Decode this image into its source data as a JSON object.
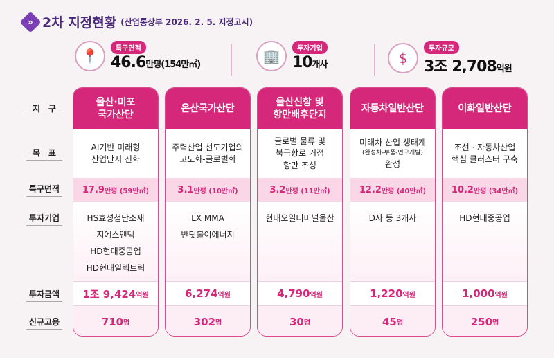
{
  "title": {
    "main": "2차 지정현황",
    "sub": "(산업통상부 2026. 2. 5. 지정고시)"
  },
  "stats": [
    {
      "icon": "map-pin-icon",
      "label": "특구면적",
      "value": "46.6",
      "unit": "만평(154만㎡)"
    },
    {
      "icon": "building-icon",
      "label": "투자기업",
      "value": "10",
      "unit": "개사"
    },
    {
      "icon": "money-hand-icon",
      "label": "투자규모",
      "value": "3조 2,708",
      "unit": "억원"
    }
  ],
  "row_labels": [
    "지　구",
    "목　표",
    "특구면적",
    "투자기업",
    "투자금액",
    "신규고용"
  ],
  "districts": [
    {
      "name": "울산·미포\n국가산단",
      "goal": "AI기반 미래형\n산업단지 진화",
      "goal_note": "",
      "goal_end": "",
      "area": "17.9",
      "area_unit": "만평 (59만㎡)",
      "companies": "HS효성첨단소재\n지에스엔텍\nHD현대중공업\nHD현대일렉트릭",
      "invest": "1조 9,424",
      "invest_unit": "억원",
      "jobs": "710",
      "jobs_unit": "명"
    },
    {
      "name": "온산국가산단",
      "goal": "주력산업 선도기업의\n고도화-글로벌화",
      "goal_note": "",
      "goal_end": "",
      "area": "3.1",
      "area_unit": "만평 (10만㎡)",
      "companies": "LX MMA\n반딧불이에너지",
      "invest": "6,274",
      "invest_unit": "억원",
      "jobs": "302",
      "jobs_unit": "명"
    },
    {
      "name": "울산신항 및\n항만배후단지",
      "goal": "글로벌 물류 및\n북극항로 거점\n항만 조성",
      "goal_note": "",
      "goal_end": "",
      "area": "3.2",
      "area_unit": "만평 (11만㎡)",
      "companies": "현대오일터미널울산",
      "invest": "4,790",
      "invest_unit": "억원",
      "jobs": "30",
      "jobs_unit": "명"
    },
    {
      "name": "자동차일반산단",
      "goal": "미래차 산업 생태계",
      "goal_note": "(완성차-부품-연구개발)",
      "goal_end": "완성",
      "area": "12.2",
      "area_unit": "만평 (40만㎡)",
      "companies": "D사 등 3개사",
      "invest": "1,220",
      "invest_unit": "억원",
      "jobs": "45",
      "jobs_unit": "명"
    },
    {
      "name": "이화일반산단",
      "goal": "조선 · 자동차산업\n핵심 클러스터 구축",
      "goal_note": "",
      "goal_end": "",
      "area": "10.2",
      "area_unit": "만평 (34만㎡)",
      "companies": "HD현대중공업",
      "invest": "1,000",
      "invest_unit": "억원",
      "jobs": "250",
      "jobs_unit": "명"
    }
  ],
  "colors": {
    "accent": "#d6287a",
    "title": "#4a2a7a",
    "area_bg": "#f9d7e6"
  }
}
